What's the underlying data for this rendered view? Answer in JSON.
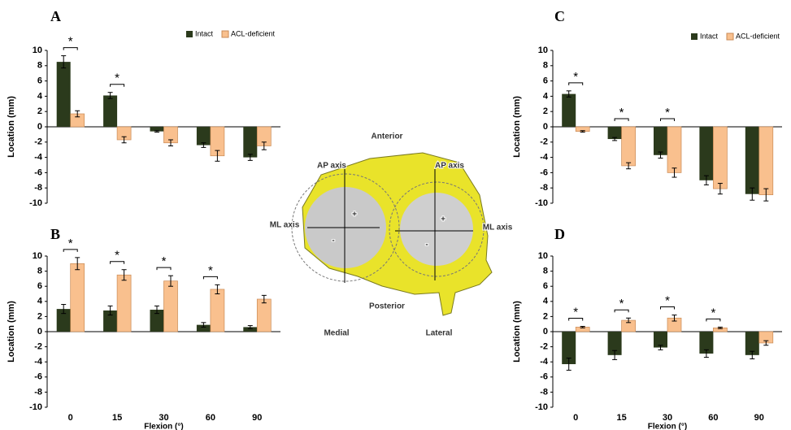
{
  "chart_data": [
    {
      "type": "bar",
      "panel": "A",
      "ylabel": "Location (mm)",
      "categories": [
        null,
        null,
        null,
        null,
        null
      ],
      "ylim": [
        -10,
        10
      ],
      "yticks": [
        -10,
        -8,
        -6,
        -4,
        -2,
        0,
        2,
        4,
        6,
        8,
        10
      ],
      "series": [
        {
          "name": "Intact",
          "color": "#2b3a1c",
          "values": [
            8.5,
            4.1,
            -0.6,
            -2.4,
            -4.0
          ],
          "errors": [
            0.8,
            0.4,
            0.1,
            0.3,
            0.4
          ]
        },
        {
          "name": "ACL-deficient",
          "color": "#f9c08e",
          "values": [
            1.7,
            -1.7,
            -2.1,
            -3.8,
            -2.5
          ],
          "errors": [
            0.4,
            0.4,
            0.4,
            0.7,
            0.5
          ]
        }
      ],
      "significance": [
        "*",
        "*",
        null,
        null,
        null
      ]
    },
    {
      "type": "bar",
      "panel": "B",
      "ylabel": "Location (mm)",
      "xlabel": "Flexion (°)",
      "categories": [
        "0",
        "15",
        "30",
        "60",
        "90"
      ],
      "ylim": [
        -10,
        10
      ],
      "yticks": [
        -10,
        -8,
        -6,
        -4,
        -2,
        0,
        2,
        4,
        6,
        8,
        10
      ],
      "series": [
        {
          "color": "#2b3a1c",
          "values": [
            3.0,
            2.8,
            2.9,
            0.9,
            0.6
          ],
          "errors": [
            0.6,
            0.6,
            0.5,
            0.3,
            0.2
          ]
        },
        {
          "color": "#f9c08e",
          "values": [
            9.0,
            7.5,
            6.7,
            5.6,
            4.3
          ],
          "errors": [
            0.8,
            0.7,
            0.7,
            0.6,
            0.5
          ]
        }
      ],
      "significance": [
        "*",
        "*",
        "*",
        "*",
        null
      ]
    },
    {
      "type": "bar",
      "panel": "C",
      "ylabel": "Location (mm)",
      "categories": [
        null,
        null,
        null,
        null,
        null
      ],
      "ylim": [
        -10,
        10
      ],
      "yticks": [
        -10,
        -8,
        -6,
        -4,
        -2,
        0,
        2,
        4,
        6,
        8,
        10
      ],
      "series": [
        {
          "name": "Intact",
          "color": "#2b3a1c",
          "values": [
            4.3,
            -1.6,
            -3.7,
            -7.0,
            -8.8
          ],
          "errors": [
            0.4,
            0.2,
            0.4,
            0.6,
            0.8
          ]
        },
        {
          "name": "ACL-deficient",
          "color": "#f9c08e",
          "values": [
            -0.6,
            -5.1,
            -6.0,
            -8.1,
            -8.9
          ],
          "errors": [
            0.1,
            0.4,
            0.6,
            0.7,
            0.8
          ]
        }
      ],
      "significance": [
        "*",
        "*",
        "*",
        null,
        null
      ]
    },
    {
      "type": "bar",
      "panel": "D",
      "ylabel": "Location (mm)",
      "xlabel": "Flexion (°)",
      "categories": [
        "0",
        "15",
        "30",
        "60",
        "90"
      ],
      "ylim": [
        -10,
        10
      ],
      "yticks": [
        -10,
        -8,
        -6,
        -4,
        -2,
        0,
        2,
        4,
        6,
        8,
        10
      ],
      "series": [
        {
          "color": "#2b3a1c",
          "values": [
            -4.3,
            -3.1,
            -2.1,
            -2.9,
            -3.1
          ],
          "errors": [
            0.8,
            0.6,
            0.3,
            0.5,
            0.5
          ]
        },
        {
          "color": "#f9c08e",
          "values": [
            0.6,
            1.5,
            1.8,
            0.5,
            -1.5
          ],
          "errors": [
            0.1,
            0.3,
            0.4,
            0.1,
            0.3
          ]
        }
      ],
      "significance": [
        "*",
        "*",
        "*",
        "*",
        null
      ]
    }
  ],
  "diagram": {
    "labels": [
      "Anterior",
      "AP axis",
      "AP axis",
      "ML axis",
      "ML axis",
      "+",
      "+",
      "-",
      "-",
      "Posterior",
      "Medial",
      "Lateral"
    ]
  }
}
